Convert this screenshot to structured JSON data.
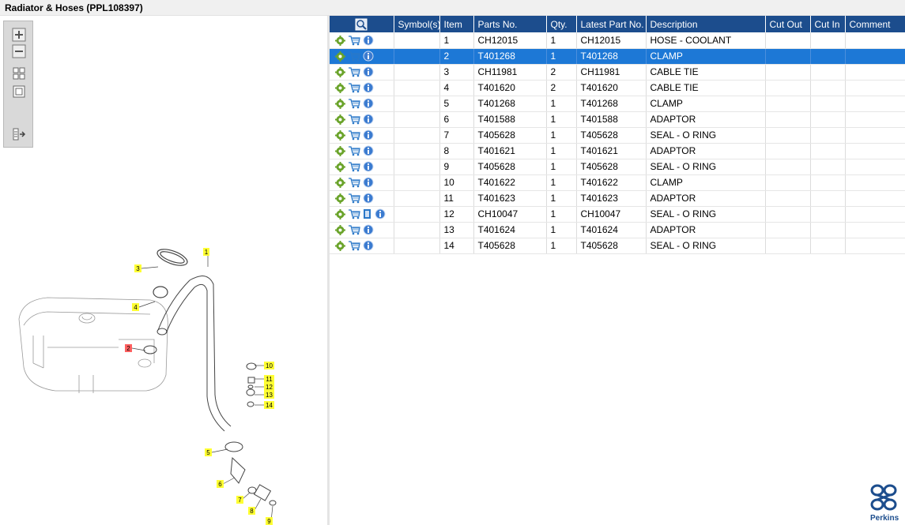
{
  "window": {
    "title": "Radiator & Hoses (PPL108397)"
  },
  "toolbar": {
    "buttons": [
      {
        "name": "zoom-in-button",
        "icon": "zoom-in-icon"
      },
      {
        "name": "zoom-out-button",
        "icon": "zoom-out-icon"
      },
      {
        "name": "fit-all-button",
        "icon": "fit-all-icon"
      },
      {
        "name": "fit-window-button",
        "icon": "fit-window-icon"
      },
      {
        "name": "export-button",
        "icon": "export-icon"
      }
    ]
  },
  "table": {
    "columns": [
      "Symbol(s)",
      "Item",
      "Parts No.",
      "Qty.",
      "Latest Part No.",
      "Description",
      "Cut Out",
      "Cut In",
      "Comment"
    ],
    "header_icon": "search-table-icon",
    "selected_index": 1,
    "rows": [
      {
        "item": "1",
        "part": "CH12015",
        "qty": "1",
        "latest": "CH12015",
        "desc": "HOSE - COOLANT",
        "extra_icon": false
      },
      {
        "item": "2",
        "part": "T401268",
        "qty": "1",
        "latest": "T401268",
        "desc": "CLAMP",
        "extra_icon": false
      },
      {
        "item": "3",
        "part": "CH11981",
        "qty": "2",
        "latest": "CH11981",
        "desc": "CABLE TIE",
        "extra_icon": false
      },
      {
        "item": "4",
        "part": "T401620",
        "qty": "2",
        "latest": "T401620",
        "desc": "CABLE TIE",
        "extra_icon": false
      },
      {
        "item": "5",
        "part": "T401268",
        "qty": "1",
        "latest": "T401268",
        "desc": "CLAMP",
        "extra_icon": false
      },
      {
        "item": "6",
        "part": "T401588",
        "qty": "1",
        "latest": "T401588",
        "desc": "ADAPTOR",
        "extra_icon": false
      },
      {
        "item": "7",
        "part": "T405628",
        "qty": "1",
        "latest": "T405628",
        "desc": "SEAL - O RING",
        "extra_icon": false
      },
      {
        "item": "8",
        "part": "T401621",
        "qty": "1",
        "latest": "T401621",
        "desc": "ADAPTOR",
        "extra_icon": false
      },
      {
        "item": "9",
        "part": "T405628",
        "qty": "1",
        "latest": "T405628",
        "desc": "SEAL - O RING",
        "extra_icon": false
      },
      {
        "item": "10",
        "part": "T401622",
        "qty": "1",
        "latest": "T401622",
        "desc": "CLAMP",
        "extra_icon": false
      },
      {
        "item": "11",
        "part": "T401623",
        "qty": "1",
        "latest": "T401623",
        "desc": "ADAPTOR",
        "extra_icon": false
      },
      {
        "item": "12",
        "part": "CH10047",
        "qty": "1",
        "latest": "CH10047",
        "desc": "SEAL - O RING",
        "extra_icon": true
      },
      {
        "item": "13",
        "part": "T401624",
        "qty": "1",
        "latest": "T401624",
        "desc": "ADAPTOR",
        "extra_icon": false
      },
      {
        "item": "14",
        "part": "T405628",
        "qty": "1",
        "latest": "T405628",
        "desc": "SEAL - O RING",
        "extra_icon": false
      }
    ]
  },
  "row_icons": [
    "gear-icon",
    "cart-icon",
    "info-icon"
  ],
  "drawing": {
    "callouts": [
      "1",
      "2",
      "3",
      "4",
      "5",
      "6",
      "7",
      "8",
      "9",
      "10",
      "11",
      "12",
      "13",
      "14"
    ],
    "highlighted": "2",
    "colors": {
      "callout": "#ffff33",
      "callout_selected": "#ff6060",
      "line": "#444444"
    }
  },
  "colors": {
    "header_bg": "#1c4d8d",
    "selected_row": "#1d78d6",
    "brand": "#1c4d8d"
  },
  "brand": {
    "name": "Perkins"
  }
}
